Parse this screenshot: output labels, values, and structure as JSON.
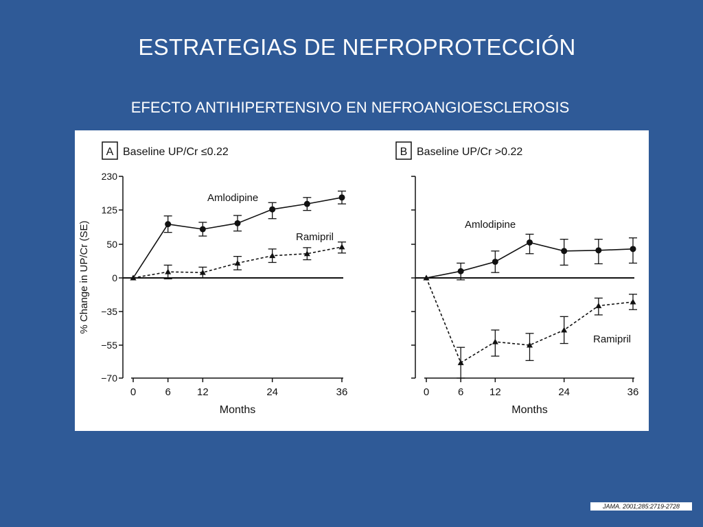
{
  "slide": {
    "title": "ESTRATEGIAS DE NEFROPROTECCIÓN",
    "subtitle": "EFECTO ANTIHIPERTENSIVO EN NEFROANGIOESCLEROSIS",
    "citation": "JAMA. 2001;285:2719-2728"
  },
  "colors": {
    "background": "#2f5a97",
    "panel": "#ffffff",
    "ink": "#111111"
  },
  "chart_data": [
    {
      "type": "line",
      "panel_letter": "A",
      "title": "Baseline UP/Cr ≤0.22",
      "xlabel": "Months",
      "ylabel": "% Change in UP/Cr (SE)",
      "x_ticks": [
        0,
        6,
        12,
        24,
        36
      ],
      "y_ticks": [
        230,
        125,
        50,
        0,
        -35,
        -55,
        -70
      ],
      "y_tick_labels": [
        "230",
        "125",
        "50",
        "0",
        "−35",
        "−55",
        "−70"
      ],
      "xlim": [
        0,
        36
      ],
      "grid": false,
      "series": [
        {
          "name": "Amlodipine",
          "marker": "circle",
          "line": "solid",
          "x": [
            0,
            6,
            12,
            18,
            24,
            30,
            36
          ],
          "y": [
            0,
            94,
            83,
            96,
            127,
            144,
            164
          ],
          "err": [
            0,
            18,
            15,
            17,
            21,
            20,
            20
          ]
        },
        {
          "name": "Ramipril",
          "marker": "triangle",
          "line": "dashed",
          "x": [
            0,
            6,
            12,
            18,
            24,
            30,
            36
          ],
          "y": [
            0,
            9,
            8,
            22,
            33,
            36,
            46
          ],
          "err": [
            0,
            10,
            8,
            10,
            10,
            9,
            9
          ]
        }
      ]
    },
    {
      "type": "line",
      "panel_letter": "B",
      "title": "Baseline UP/Cr >0.22",
      "xlabel": "Months",
      "x_ticks": [
        0,
        6,
        12,
        24,
        36
      ],
      "xlim": [
        0,
        36
      ],
      "grid": false,
      "series": [
        {
          "name": "Amlodipine",
          "marker": "circle",
          "line": "solid",
          "x": [
            0,
            6,
            12,
            18,
            24,
            30,
            36
          ],
          "y": [
            0,
            10,
            24,
            54,
            40,
            41,
            43
          ],
          "err": [
            0,
            12,
            16,
            18,
            21,
            20,
            21
          ]
        },
        {
          "name": "Ramipril",
          "marker": "triangle",
          "line": "dashed",
          "x": [
            0,
            6,
            12,
            18,
            24,
            30,
            36
          ],
          "y": [
            0,
            -63,
            -53,
            -55,
            -46,
            -29,
            -25
          ],
          "err": [
            0,
            7,
            7,
            7,
            8,
            8,
            8
          ]
        }
      ]
    }
  ]
}
